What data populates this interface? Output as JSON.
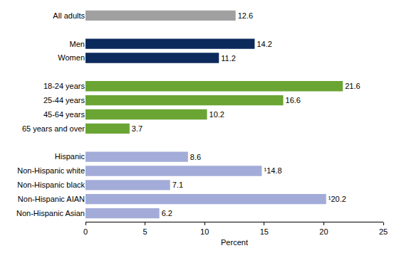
{
  "chart_data": {
    "type": "bar",
    "orientation": "horizontal",
    "categories": [
      "All adults",
      null,
      "Men",
      "Women",
      null,
      "18-24 years",
      "25-44 years",
      "45-64 years",
      "65 years and over",
      null,
      "Hispanic",
      "Non-Hispanic white",
      "Non-Hispanic black",
      "Non-Hispanic AIAN",
      "Non-Hispanic Asian"
    ],
    "values": [
      12.6,
      null,
      14.2,
      11.2,
      null,
      21.6,
      16.6,
      10.2,
      3.7,
      null,
      8.6,
      14.8,
      7.1,
      20.2,
      6.2
    ],
    "value_labels": [
      "12.6",
      null,
      "14.2",
      "11.2",
      null,
      "21.6",
      "16.6",
      "10.2",
      "3.7",
      null,
      "8.6",
      "¹14.8",
      "7.1",
      "¹20.2",
      "6.2"
    ],
    "colors": [
      "#a0a0a0",
      null,
      "#0d2a5c",
      "#0d2a5c",
      null,
      "#6aa534",
      "#6aa534",
      "#6aa534",
      "#6aa534",
      null,
      "#a3acd8",
      "#a3acd8",
      "#a3acd8",
      "#a3acd8",
      "#a3acd8"
    ],
    "xlabel": "Percent",
    "xlim": [
      0,
      25
    ],
    "xticks": [
      0,
      5,
      10,
      15,
      20,
      25
    ],
    "grid": false,
    "data_labels": true
  }
}
